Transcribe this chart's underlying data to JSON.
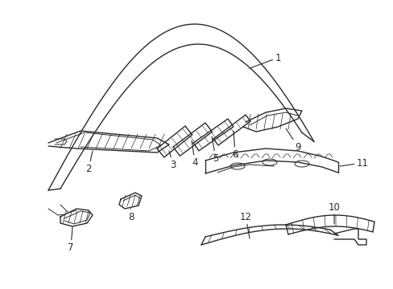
{
  "background_color": "#ffffff",
  "line_color": "#2a2a2a",
  "fig_width": 4.89,
  "fig_height": 3.6,
  "dpi": 100,
  "font_size": 8.5
}
